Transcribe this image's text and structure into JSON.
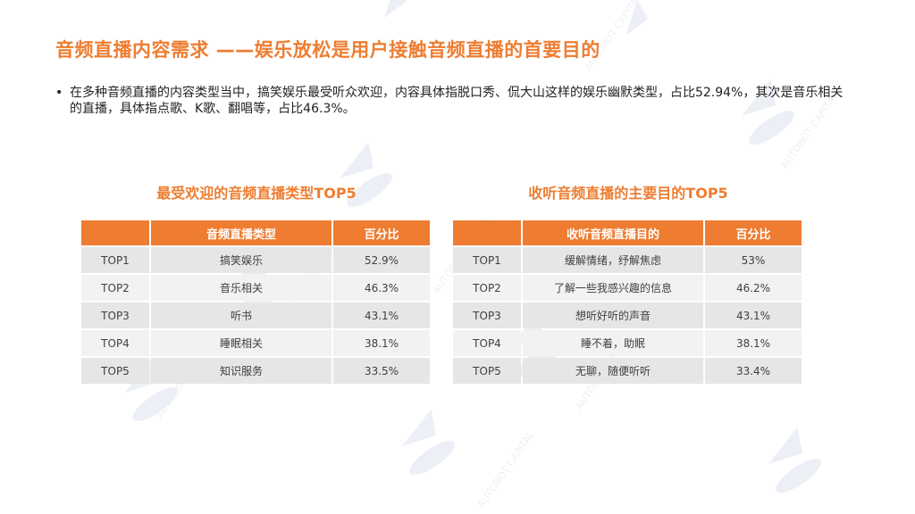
{
  "title": "音频直播内容需求 ——娱乐放松是用户接触音频直播的首要目的",
  "bullet": {
    "marker": "•",
    "text": "在多种音频直播的内容类型当中，搞笑娱乐最受听众欢迎，内容具体指脱口秀、侃大山这样的娱乐幽默类型，占比52.94%，其次是音乐相关的直播，具体指点歌、K歌、翻唱等，占比46.3%。"
  },
  "watermark_text": "AUTOBOT CAPITAL",
  "table_left": {
    "title": "最受欢迎的音频直播类型TOP5",
    "headers": [
      "",
      "音频直播类型",
      "百分比"
    ],
    "rows": [
      [
        "TOP1",
        "搞笑娱乐",
        "52.9%"
      ],
      [
        "TOP2",
        "音乐相关",
        "46.3%"
      ],
      [
        "TOP3",
        "听书",
        "43.1%"
      ],
      [
        "TOP4",
        "睡眠相关",
        "38.1%"
      ],
      [
        "TOP5",
        "知识服务",
        "33.5%"
      ]
    ]
  },
  "table_right": {
    "title": "收听音频直播的主要目的TOP5",
    "headers": [
      "",
      "收听音频直播目的",
      "百分比"
    ],
    "rows": [
      [
        "TOP1",
        "缓解情绪，纾解焦虑",
        "53%"
      ],
      [
        "TOP2",
        "了解一些我感兴趣的信息",
        "46.2%"
      ],
      [
        "TOP3",
        "想听好听的声音",
        "43.1%"
      ],
      [
        "TOP4",
        "睡不着，助眠",
        "38.1%"
      ],
      [
        "TOP5",
        "无聊，随便听听",
        "33.4%"
      ]
    ]
  },
  "colors": {
    "accent": "#ee7d31",
    "row_odd": "#e6e6e6",
    "row_even": "#f2f2f2"
  }
}
